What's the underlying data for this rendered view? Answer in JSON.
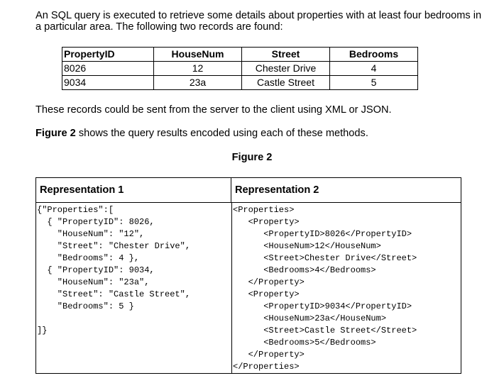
{
  "intro": "An SQL query is executed to retrieve some details about properties with at least four bedrooms in a particular area. The following two records are found:",
  "table": {
    "headers": [
      "PropertyID",
      "HouseNum",
      "Street",
      "Bedrooms"
    ],
    "rows": [
      [
        "8026",
        "12",
        "Chester Drive",
        "4"
      ],
      [
        "9034",
        "23a",
        "Castle Street",
        "5"
      ]
    ]
  },
  "para2": "These records could be sent from the server to the client using XML or JSON.",
  "para3": {
    "bold": "Figure 2",
    "rest": " shows the query results encoded using each of these methods."
  },
  "figure_caption": "Figure 2",
  "representations": {
    "left_title": "Representation 1",
    "right_title": "Representation 2",
    "json_lines": [
      "{\"Properties\":[",
      "  { \"PropertyID\": 8026,",
      "    \"HouseNum\": \"12\",",
      "    \"Street\": \"Chester Drive\",",
      "    \"Bedrooms\": 4 },",
      "  { \"PropertyID\": 9034,",
      "    \"HouseNum\": \"23a\",",
      "    \"Street\": \"Castle Street\",",
      "    \"Bedrooms\": 5 }",
      "",
      "]}"
    ],
    "xml_lines": [
      "<Properties>",
      "   <Property>",
      "      <PropertyID>8026</PropertyID>",
      "      <HouseNum>12</HouseNum>",
      "      <Street>Chester Drive</Street>",
      "      <Bedrooms>4</Bedrooms>",
      "   </Property>",
      "   <Property>",
      "      <PropertyID>9034</PropertyID>",
      "      <HouseNum>23a</HouseNum>",
      "      <Street>Castle Street</Street>",
      "      <Bedrooms>5</Bedrooms>",
      "   </Property>",
      "</Properties>"
    ]
  }
}
